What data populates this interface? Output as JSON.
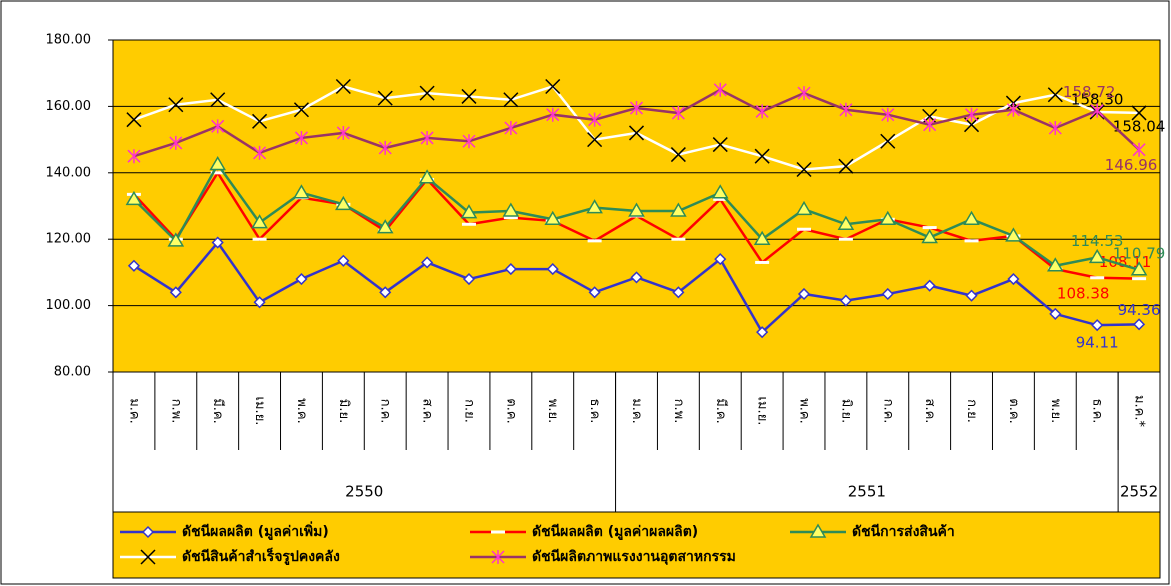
{
  "chart_data": {
    "type": "line",
    "categories": [
      "ม.ค.",
      "ก.พ.",
      "มี.ค.",
      "เม.ย.",
      "พ.ค.",
      "มิ.ย.",
      "ก.ค.",
      "ส.ค.",
      "ก.ย.",
      "ต.ค.",
      "พ.ย.",
      "ธ.ค.",
      "ม.ค.",
      "ก.พ.",
      "มี.ค.",
      "เม.ย.",
      "พ.ค.",
      "มิ.ย.",
      "ก.ค.",
      "ส.ค.",
      "ก.ย.",
      "ต.ค.",
      "พ.ย.",
      "ธ.ค.",
      "ม.ค.*"
    ],
    "groups": [
      {
        "label": "2550",
        "span": 12
      },
      {
        "label": "2551",
        "span": 12
      },
      {
        "label": "2552",
        "span": 1
      }
    ],
    "ylim": [
      80,
      180
    ],
    "yticks": [
      {
        "value": 80,
        "label": "80.00"
      },
      {
        "value": 100,
        "label": "100.00"
      },
      {
        "value": 120,
        "label": "120.00"
      },
      {
        "value": 140,
        "label": "140.00"
      },
      {
        "value": 160,
        "label": "160.00"
      },
      {
        "value": 180,
        "label": "180.00"
      }
    ],
    "grid": true,
    "background": "#FFCC00",
    "legend": "bottom",
    "series": [
      {
        "name": "ดัชนีผลผลิต (มูลค่าเพิ่ม)",
        "color": "#3333CC",
        "marker": "diamond",
        "values": [
          112,
          104,
          119,
          101,
          108,
          113.5,
          104,
          113,
          108,
          111,
          111,
          104,
          108.5,
          104,
          114,
          92,
          103.5,
          101.5,
          103.5,
          106,
          103,
          108,
          97.5,
          94.11,
          94.36
        ],
        "value_labels": [
          null,
          null,
          null,
          null,
          null,
          null,
          null,
          null,
          null,
          null,
          null,
          null,
          null,
          null,
          null,
          null,
          null,
          null,
          null,
          null,
          null,
          null,
          null,
          "94.11",
          "94.36"
        ]
      },
      {
        "name": "ดัชนีผลผลิต (มูลค่าผลผลิต)",
        "color": "#FF0000",
        "marker": "dash",
        "values": [
          133.5,
          120,
          140,
          120,
          132.5,
          130.5,
          122.5,
          138,
          124.5,
          126.5,
          125.5,
          119.5,
          127,
          120,
          132,
          113,
          123,
          120,
          126,
          123.5,
          119.5,
          121,
          111,
          108.38,
          108.11
        ],
        "value_labels": [
          null,
          null,
          null,
          null,
          null,
          null,
          null,
          null,
          null,
          null,
          null,
          null,
          null,
          null,
          null,
          null,
          null,
          null,
          null,
          null,
          null,
          null,
          null,
          "108.38",
          "108.11"
        ]
      },
      {
        "name": "ดัชนีการส่งสินค้า",
        "color": "#2E8B57",
        "marker": "triangle",
        "values": [
          132,
          119.5,
          142.5,
          125,
          134,
          130.5,
          123.5,
          138.5,
          128,
          128.5,
          126,
          129.5,
          128.5,
          128.5,
          134,
          120,
          129,
          124.5,
          126,
          120.5,
          126,
          121,
          112,
          114.53,
          110.79
        ],
        "value_labels": [
          null,
          null,
          null,
          null,
          null,
          null,
          null,
          null,
          null,
          null,
          null,
          null,
          null,
          null,
          null,
          null,
          null,
          null,
          null,
          null,
          null,
          null,
          null,
          "114.53",
          "110.79"
        ]
      },
      {
        "name": "ดัชนีสินค้าสำเร็จรูปคงคลัง",
        "color": "#FFFFFF",
        "marker": "x",
        "values": [
          156,
          160.5,
          162,
          155.5,
          159,
          166,
          162.5,
          164,
          163,
          162,
          166,
          150,
          152,
          145.5,
          148.5,
          145,
          141,
          142,
          149.5,
          157,
          154.5,
          161,
          163.5,
          158.3,
          158.04
        ],
        "value_labels": [
          null,
          null,
          null,
          null,
          null,
          null,
          null,
          null,
          null,
          null,
          null,
          null,
          null,
          null,
          null,
          null,
          null,
          null,
          null,
          null,
          null,
          null,
          null,
          "158.30",
          "158.04"
        ]
      },
      {
        "name": "ดัชนีผลิตภาพแรงงานอุตสาหกรรม",
        "color": "#993366",
        "marker": "star",
        "values": [
          145,
          149,
          154,
          146,
          150.5,
          152,
          147.5,
          150.5,
          149.5,
          153.5,
          157.5,
          156,
          159.5,
          158,
          165,
          158.5,
          164,
          159,
          157.5,
          154.5,
          157.5,
          159,
          153.5,
          158.72,
          146.96
        ],
        "value_labels": [
          null,
          null,
          null,
          null,
          null,
          null,
          null,
          null,
          null,
          null,
          null,
          null,
          null,
          null,
          null,
          null,
          null,
          null,
          null,
          null,
          null,
          null,
          null,
          "158.72",
          "146.96"
        ]
      }
    ]
  }
}
